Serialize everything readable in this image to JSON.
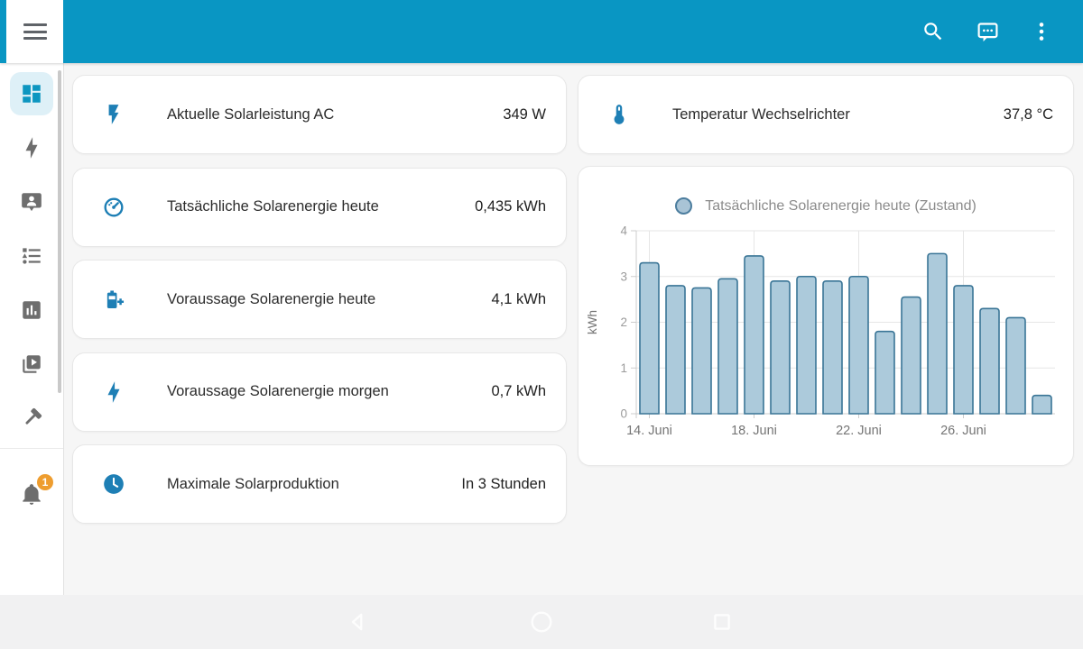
{
  "theme": {
    "header_color": "#0996c3",
    "active_icon_color": "#0d96c0",
    "card_icon_color": "#1e7fb5",
    "badge_color": "#ee9d2f"
  },
  "header": {
    "icons": [
      "menu-icon",
      "search-icon",
      "chat-icon",
      "overflow-menu-icon"
    ]
  },
  "sidebar": {
    "items": [
      {
        "icon": "dashboard-icon",
        "active": true
      },
      {
        "icon": "energy-bolt-icon",
        "active": false
      },
      {
        "icon": "person-bubble-icon",
        "active": false
      },
      {
        "icon": "logbook-list-icon",
        "active": false
      },
      {
        "icon": "history-chart-icon",
        "active": false
      },
      {
        "icon": "media-play-icon",
        "active": false
      },
      {
        "icon": "developer-tools-hammer-icon",
        "active": false
      }
    ],
    "notifications": {
      "icon": "bell-icon",
      "badge": "1"
    }
  },
  "cards": {
    "left": [
      {
        "icon": "flash-icon",
        "label": "Aktuelle Solarleistung AC",
        "value": "349 W"
      },
      {
        "icon": "gauge-icon",
        "label": "Tatsächliche Solarenergie heute",
        "value": "0,435 kWh"
      },
      {
        "icon": "battery-plus-icon",
        "label": "Voraussage Solarenergie heute",
        "value": "4,1 kWh"
      },
      {
        "icon": "bolt-icon",
        "label": "Voraussage Solarenergie morgen",
        "value": "0,7 kWh"
      },
      {
        "icon": "clock-icon",
        "label": "Maximale Solarproduktion",
        "value": "In 3 Stunden"
      }
    ],
    "right": [
      {
        "icon": "thermometer-icon",
        "label": "Temperatur Wechselrichter",
        "value": "37,8 °C"
      }
    ]
  },
  "chart_data": {
    "type": "bar",
    "title": "Tatsächliche Solarenergie heute (Zustand)",
    "xlabel": "",
    "ylabel": "kWh",
    "ylim": [
      0,
      4
    ],
    "yticks": [
      0,
      1,
      2,
      3,
      4
    ],
    "x_tick_labels": [
      "14. Juni",
      "18. Juni",
      "22. Juni",
      "26. Juni"
    ],
    "x_tick_bar_indices": [
      0,
      4,
      8,
      12
    ],
    "values": [
      3.3,
      2.8,
      2.75,
      2.95,
      3.45,
      2.9,
      3.0,
      2.9,
      3.0,
      1.8,
      2.55,
      3.5,
      2.8,
      2.3,
      2.1,
      0.4
    ],
    "legend_position": "top",
    "grid": true,
    "colors": {
      "bar_fill": "#accadb",
      "bar_border": "#3a7596",
      "grid": "#e6e6e6",
      "axis": "#cccccc",
      "tick_text": "#9b9b9b",
      "label_text": "#757575",
      "legend_fill": "#a9c4d6",
      "legend_border": "#4c7d9e"
    }
  },
  "navbar": {
    "icons": [
      "back-icon",
      "home-icon",
      "recents-icon"
    ]
  }
}
